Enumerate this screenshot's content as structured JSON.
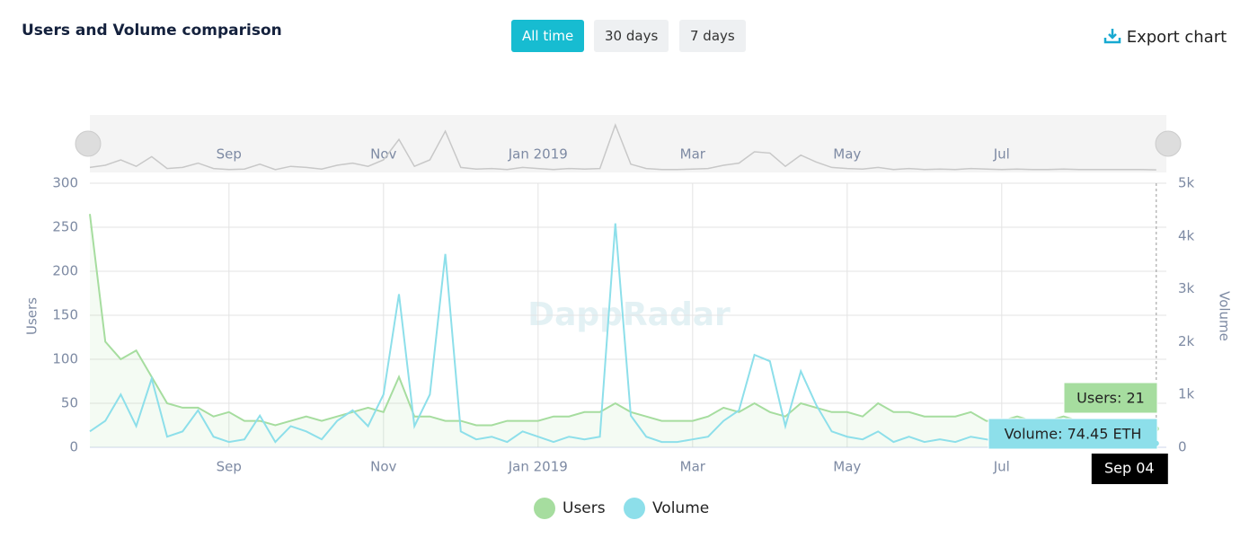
{
  "header": {
    "title": "Users and Volume comparison",
    "buttons": [
      "All time",
      "30 days",
      "7 days"
    ],
    "export": "Export chart"
  },
  "chart_data": {
    "type": "line",
    "watermark": "DappRadar",
    "y_label": "Users",
    "y2_label": "Volume",
    "categories": [
      null,
      null,
      null,
      null,
      null,
      null,
      null,
      null,
      null,
      "Sep",
      null,
      null,
      null,
      null,
      null,
      null,
      null,
      null,
      null,
      "Nov",
      null,
      null,
      null,
      null,
      null,
      null,
      null,
      null,
      null,
      "Jan 2019",
      null,
      null,
      null,
      null,
      null,
      null,
      null,
      null,
      null,
      "Mar",
      null,
      null,
      null,
      null,
      null,
      null,
      null,
      null,
      null,
      "May",
      null,
      null,
      null,
      null,
      null,
      null,
      null,
      null,
      null,
      "Jul",
      null,
      null,
      null,
      null,
      null,
      null,
      null,
      null,
      null,
      "Sep 04"
    ],
    "series": [
      {
        "name": "Users",
        "color": "#a6dd9f",
        "axis": "y",
        "values": [
          265,
          120,
          100,
          110,
          80,
          50,
          45,
          45,
          35,
          40,
          30,
          30,
          25,
          30,
          35,
          30,
          35,
          40,
          45,
          40,
          80,
          35,
          35,
          30,
          30,
          25,
          25,
          30,
          30,
          30,
          35,
          35,
          40,
          40,
          50,
          40,
          35,
          30,
          30,
          30,
          35,
          45,
          40,
          50,
          40,
          35,
          50,
          45,
          40,
          40,
          35,
          50,
          40,
          40,
          35,
          35,
          35,
          40,
          30,
          30,
          35,
          30,
          30,
          35,
          30,
          30,
          30,
          30,
          25,
          21
        ],
        "value_labels": [
          null,
          null,
          null,
          null,
          null,
          null,
          null,
          null,
          null,
          null,
          null,
          null,
          null,
          null,
          null,
          null,
          null,
          null,
          null,
          null,
          null,
          null,
          null,
          null,
          null,
          null,
          null,
          null,
          null,
          null,
          null,
          null,
          null,
          null,
          null,
          null,
          null,
          null,
          null,
          null,
          null,
          null,
          null,
          null,
          null,
          null,
          null,
          null,
          null,
          null,
          null,
          null,
          null,
          null,
          null,
          null,
          null,
          null,
          null,
          null,
          null,
          null,
          null,
          null,
          null,
          null,
          null,
          null,
          null,
          "Users: 21"
        ]
      },
      {
        "name": "Volume",
        "color": "#8ddfea",
        "axis": "y2",
        "values": [
          300,
          500,
          1000,
          400,
          1300,
          200,
          300,
          700,
          200,
          100,
          150,
          600,
          100,
          400,
          300,
          150,
          500,
          700,
          400,
          1000,
          2900,
          400,
          1000,
          3660,
          300,
          150,
          200,
          100,
          300,
          200,
          100,
          200,
          150,
          200,
          4240,
          600,
          200,
          100,
          100,
          150,
          200,
          500,
          700,
          1750,
          1630,
          400,
          1440,
          800,
          300,
          200,
          150,
          300,
          100,
          200,
          100,
          150,
          100,
          200,
          150,
          100,
          150,
          100,
          100,
          150,
          100,
          100,
          100,
          100,
          100,
          74.45
        ],
        "value_labels": [
          null,
          null,
          null,
          null,
          null,
          null,
          null,
          null,
          null,
          null,
          null,
          null,
          null,
          null,
          null,
          null,
          null,
          null,
          null,
          null,
          null,
          null,
          null,
          null,
          null,
          null,
          null,
          null,
          null,
          null,
          null,
          null,
          null,
          null,
          null,
          null,
          null,
          null,
          null,
          null,
          null,
          null,
          null,
          null,
          null,
          null,
          null,
          null,
          null,
          null,
          null,
          null,
          null,
          null,
          null,
          null,
          null,
          null,
          null,
          null,
          null,
          null,
          null,
          null,
          null,
          null,
          null,
          null,
          null,
          "Volume: 74.45 ETH"
        ]
      }
    ],
    "ylim": [
      0,
      300
    ],
    "yticks": [
      0,
      50,
      100,
      150,
      200,
      250,
      300
    ],
    "y2lim": [
      0,
      5000
    ],
    "y2ticks": [
      0,
      {
        "value": 1000,
        "label": "1k"
      },
      {
        "value": 2000,
        "label": "2k"
      },
      {
        "value": 3000,
        "label": "3k"
      },
      {
        "value": 4000,
        "label": "4k"
      },
      {
        "value": 5000,
        "label": "5k"
      }
    ],
    "grid": true,
    "legend": "bottom"
  }
}
